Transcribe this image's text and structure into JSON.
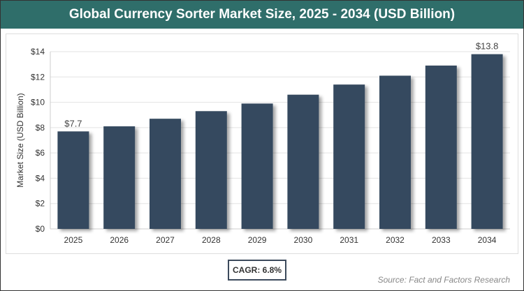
{
  "chart_data": {
    "type": "bar",
    "title": "Global Currency Sorter Market Size, 2025 - 2034 (USD Billion)",
    "xlabel": "",
    "ylabel": "Market Size (USD Billion)",
    "categories": [
      "2025",
      "2026",
      "2027",
      "2028",
      "2029",
      "2030",
      "2031",
      "2032",
      "2033",
      "2034"
    ],
    "values": [
      7.7,
      8.1,
      8.7,
      9.3,
      9.9,
      10.6,
      11.4,
      12.1,
      12.9,
      13.8
    ],
    "data_labels": {
      "0": "$7.7",
      "9": "$13.8"
    },
    "ylim": [
      0,
      14
    ],
    "yticks": [
      "$0",
      "$2",
      "$4",
      "$6",
      "$8",
      "$10",
      "$12",
      "$14"
    ],
    "grid": true,
    "bar_color": "#364a5f"
  },
  "cagr": "CAGR: 6.8%",
  "source": "Source: Fact and Factors Research"
}
